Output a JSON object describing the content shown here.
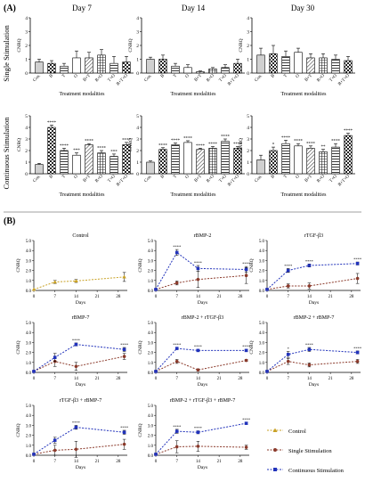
{
  "panel_a_label": "(A)",
  "panel_b_label": "(B)",
  "column_headers": [
    "Day 7",
    "Day 14",
    "Day 30"
  ],
  "row_labels": [
    "Single Stimulation",
    "Continuous Stimulation"
  ],
  "legend": [
    {
      "label": "Control",
      "color": "#c9a227"
    },
    {
      "label": "Single Stimulation",
      "color": "#8b3a2b"
    },
    {
      "label": "Continuous Stimulation",
      "color": "#2233bb"
    }
  ],
  "chart_data": [
    {
      "type": "bar",
      "panel": "A",
      "row": "Single Stimulation",
      "title": "Day 7",
      "categories": [
        "Con.",
        "B",
        "T",
        "O",
        "B+T",
        "B+O",
        "T+O",
        "B+T+O"
      ],
      "values": [
        0.8,
        0.7,
        0.5,
        1.1,
        1.1,
        1.3,
        0.7,
        0.8
      ],
      "errors": [
        0.2,
        0.2,
        0.2,
        0.5,
        0.4,
        0.4,
        0.5,
        0.4
      ],
      "stars": [
        "",
        "",
        "",
        "",
        "",
        "",
        "",
        ""
      ],
      "xlabel": "Treatment modalities",
      "ylabel": "CNRQ",
      "yticks": [
        0,
        1,
        2,
        3,
        4
      ],
      "ylim": [
        0,
        4
      ]
    },
    {
      "type": "bar",
      "panel": "A",
      "row": "Single Stimulation",
      "title": "Day 14",
      "categories": [
        "Con.",
        "B",
        "T",
        "O",
        "B+T",
        "B+O",
        "T+O",
        "B+T+O"
      ],
      "values": [
        1.0,
        1.0,
        0.5,
        0.4,
        0.1,
        0.3,
        0.4,
        0.7
      ],
      "errors": [
        0.15,
        0.3,
        0.2,
        0.2,
        0.05,
        0.1,
        0.2,
        0.3
      ],
      "stars": [
        "",
        "",
        "",
        "",
        "",
        "",
        "",
        ""
      ],
      "xlabel": "Treatment modalities",
      "ylabel": "CNRQ",
      "yticks": [
        0,
        1,
        2,
        3,
        4
      ],
      "ylim": [
        0,
        4
      ]
    },
    {
      "type": "bar",
      "panel": "A",
      "row": "Single Stimulation",
      "title": "Day 30",
      "categories": [
        "Con.",
        "B",
        "T",
        "O",
        "B+T",
        "B+O",
        "T+O",
        "B+T+O"
      ],
      "values": [
        1.3,
        1.4,
        1.2,
        1.5,
        1.1,
        1.1,
        1.0,
        0.9
      ],
      "errors": [
        0.5,
        0.6,
        0.4,
        0.3,
        0.3,
        0.3,
        0.3,
        0.3
      ],
      "stars": [
        "",
        "",
        "",
        "",
        "",
        "",
        "",
        ""
      ],
      "xlabel": "Treatment modalities",
      "ylabel": "CNRQ",
      "yticks": [
        0,
        1,
        2,
        3,
        4
      ],
      "ylim": [
        0,
        4
      ]
    },
    {
      "type": "bar",
      "panel": "A",
      "row": "Continuous Stimulation",
      "title": "Day 7",
      "categories": [
        "Con.",
        "B",
        "T",
        "O",
        "B+T",
        "B+O",
        "T+O",
        "B+T+O"
      ],
      "values": [
        0.8,
        4.0,
        2.0,
        1.6,
        2.5,
        1.8,
        1.5,
        2.5
      ],
      "errors": [
        0.1,
        0.2,
        0.2,
        0.2,
        0.1,
        0.2,
        0.2,
        0.2
      ],
      "stars": [
        "",
        "****",
        "****",
        "***",
        "****",
        "****",
        "***",
        "****"
      ],
      "xlabel": "Treatment modalities",
      "ylabel": "CNRQ",
      "yticks": [
        0,
        1,
        2,
        3,
        4,
        5
      ],
      "ylim": [
        0,
        5
      ]
    },
    {
      "type": "bar",
      "panel": "A",
      "row": "Continuous Stimulation",
      "title": "Day 14",
      "categories": [
        "Con.",
        "B",
        "T",
        "O",
        "B+T",
        "B+O",
        "T+O",
        "B+T+O"
      ],
      "values": [
        1.0,
        2.1,
        2.5,
        2.7,
        2.1,
        2.2,
        2.8,
        2.2
      ],
      "errors": [
        0.1,
        0.15,
        0.15,
        0.15,
        0.1,
        0.15,
        0.2,
        0.15
      ],
      "stars": [
        "",
        "****",
        "****",
        "****",
        "****",
        "****",
        "****",
        "****"
      ],
      "xlabel": "Treatment modalities",
      "ylabel": "CNRQ",
      "yticks": [
        0,
        1,
        2,
        3,
        4,
        5
      ],
      "ylim": [
        0,
        5
      ]
    },
    {
      "type": "bar",
      "panel": "A",
      "row": "Continuous Stimulation",
      "title": "Day 30",
      "categories": [
        "Con.",
        "B",
        "T",
        "O",
        "B+T",
        "B+O",
        "T+O",
        "B+T+O"
      ],
      "values": [
        1.2,
        2.0,
        2.6,
        2.4,
        2.2,
        1.9,
        2.3,
        3.3
      ],
      "errors": [
        0.4,
        0.3,
        0.3,
        0.2,
        0.2,
        0.2,
        0.3,
        0.2
      ],
      "stars": [
        "",
        "*",
        "****",
        "****",
        "****",
        "**",
        "****",
        "****"
      ],
      "xlabel": "Treatment modalities",
      "ylabel": "CNRQ",
      "yticks": [
        0,
        1,
        2,
        3,
        4,
        5
      ],
      "ylim": [
        0,
        5
      ]
    },
    {
      "type": "line",
      "panel": "B",
      "title": "Control",
      "x": [
        0,
        7,
        14,
        30
      ],
      "xticks": [
        0,
        7,
        14,
        21,
        28
      ],
      "xlabel": "Days",
      "ylabel": "CNRQ",
      "yticks": [
        0.0,
        1.0,
        2.0,
        3.0,
        4.0,
        5.0
      ],
      "ylim": [
        0,
        5
      ],
      "series": [
        {
          "name": "Control",
          "values": [
            0.1,
            0.85,
            0.95,
            1.35
          ],
          "errors": [
            0,
            0.15,
            0.15,
            0.45
          ],
          "stars": [
            "",
            "",
            "",
            ""
          ]
        }
      ]
    },
    {
      "type": "line",
      "panel": "B",
      "title": "rBMP-2",
      "x": [
        0,
        7,
        14,
        30
      ],
      "xticks": [
        0,
        7,
        14,
        21,
        28
      ],
      "xlabel": "Days",
      "ylabel": "CNRQ",
      "yticks": [
        0.0,
        1.0,
        2.0,
        3.0,
        4.0,
        5.0
      ],
      "ylim": [
        0,
        5
      ],
      "series": [
        {
          "name": "Single Stimulation",
          "values": [
            0.1,
            0.75,
            1.1,
            1.5
          ],
          "errors": [
            0,
            0.2,
            0.8,
            0.8
          ],
          "stars": [
            "",
            "",
            "",
            ""
          ]
        },
        {
          "name": "Continuous Stimulation",
          "values": [
            0.1,
            3.8,
            2.2,
            2.1
          ],
          "errors": [
            0,
            0.3,
            0.3,
            0.3
          ],
          "stars": [
            "",
            "****",
            "****",
            "****"
          ]
        }
      ]
    },
    {
      "type": "line",
      "panel": "B",
      "title": "rTGF-β3",
      "x": [
        0,
        7,
        14,
        30
      ],
      "xticks": [
        0,
        7,
        14,
        21,
        28
      ],
      "xlabel": "Days",
      "ylabel": "CNRQ",
      "yticks": [
        0.0,
        1.0,
        2.0,
        3.0,
        4.0,
        5.0
      ],
      "ylim": [
        0,
        5
      ],
      "series": [
        {
          "name": "Single Stimulation",
          "values": [
            0.1,
            0.45,
            0.45,
            1.2
          ],
          "errors": [
            0,
            0.2,
            0.3,
            0.5
          ],
          "stars": [
            "",
            "",
            "",
            ""
          ]
        },
        {
          "name": "Continuous Stimulation",
          "values": [
            0.1,
            2.0,
            2.5,
            2.7
          ],
          "errors": [
            0,
            0.2,
            0.15,
            0.15
          ],
          "stars": [
            "",
            "****",
            "****",
            "****"
          ]
        }
      ]
    },
    {
      "type": "line",
      "panel": "B",
      "title": "rBMP-7",
      "x": [
        0,
        7,
        14,
        30
      ],
      "xticks": [
        0,
        7,
        14,
        21,
        28
      ],
      "xlabel": "Days",
      "ylabel": "CNRQ",
      "yticks": [
        0.0,
        1.0,
        2.0,
        3.0,
        4.0,
        5.0
      ],
      "ylim": [
        0,
        5
      ],
      "series": [
        {
          "name": "Single Stimulation",
          "values": [
            0.1,
            1.1,
            0.6,
            1.6
          ],
          "errors": [
            0,
            0.5,
            0.4,
            0.3
          ],
          "stars": [
            "",
            "",
            "",
            ""
          ]
        },
        {
          "name": "Continuous Stimulation",
          "values": [
            0.1,
            1.5,
            2.8,
            2.3
          ],
          "errors": [
            0,
            0.4,
            0.15,
            0.2
          ],
          "stars": [
            "",
            "",
            "****",
            "****"
          ]
        }
      ]
    },
    {
      "type": "line",
      "panel": "B",
      "title": "rBMP-2 + rTGF-β3",
      "x": [
        0,
        7,
        14,
        30
      ],
      "xticks": [
        0,
        7,
        14,
        21,
        28
      ],
      "xlabel": "Days",
      "ylabel": "CNRQ",
      "yticks": [
        0.0,
        1.0,
        2.0,
        3.0,
        4.0,
        5.0
      ],
      "ylim": [
        0,
        5
      ],
      "series": [
        {
          "name": "Single Stimulation",
          "values": [
            0.1,
            1.1,
            0.25,
            1.2
          ],
          "errors": [
            0,
            0.2,
            0.1,
            0.1
          ],
          "stars": [
            "",
            "",
            "",
            ""
          ]
        },
        {
          "name": "Continuous Stimulation",
          "values": [
            0.1,
            2.4,
            2.2,
            2.2
          ],
          "errors": [
            0,
            0.1,
            0.1,
            0.1
          ],
          "stars": [
            "",
            "****",
            "****",
            "****"
          ]
        }
      ]
    },
    {
      "type": "line",
      "panel": "B",
      "title": "rBMP-2 + rBMP-7",
      "x": [
        0,
        7,
        14,
        30
      ],
      "xticks": [
        0,
        7,
        14,
        21,
        28
      ],
      "xlabel": "Days",
      "ylabel": "CNRQ",
      "yticks": [
        0.0,
        1.0,
        2.0,
        3.0,
        4.0,
        5.0
      ],
      "ylim": [
        0,
        5
      ],
      "series": [
        {
          "name": "Single Stimulation",
          "values": [
            0.1,
            1.1,
            0.75,
            1.1
          ],
          "errors": [
            0,
            0.3,
            0.2,
            0.2
          ],
          "stars": [
            "",
            "",
            "",
            ""
          ]
        },
        {
          "name": "Continuous Stimulation",
          "values": [
            0.1,
            1.8,
            2.3,
            2.0
          ],
          "errors": [
            0,
            0.3,
            0.2,
            0.15
          ],
          "stars": [
            "",
            "*",
            "****",
            "****"
          ]
        }
      ]
    },
    {
      "type": "line",
      "panel": "B",
      "title": "rTGF-β3 + rBMP-7",
      "x": [
        0,
        7,
        14,
        30
      ],
      "xticks": [
        0,
        7,
        14,
        21,
        28
      ],
      "xlabel": "Days",
      "ylabel": "CNRQ",
      "yticks": [
        0.0,
        1.0,
        2.0,
        3.0,
        4.0,
        5.0
      ],
      "ylim": [
        0,
        5
      ],
      "series": [
        {
          "name": "Single Stimulation",
          "values": [
            0.1,
            0.5,
            0.6,
            1.1
          ],
          "errors": [
            0,
            0.5,
            0.8,
            0.5
          ],
          "stars": [
            "",
            "",
            "",
            ""
          ]
        },
        {
          "name": "Continuous Stimulation",
          "values": [
            0.1,
            1.5,
            2.8,
            2.3
          ],
          "errors": [
            0,
            0.3,
            0.2,
            0.2
          ],
          "stars": [
            "",
            "",
            "****",
            "****"
          ]
        }
      ]
    },
    {
      "type": "line",
      "panel": "B",
      "title": "rBMP-2 + rTGF-β3 + rBMP-7",
      "x": [
        0,
        7,
        14,
        30
      ],
      "xticks": [
        0,
        7,
        14,
        21,
        28
      ],
      "xlabel": "Days",
      "ylabel": "CNRQ",
      "yticks": [
        0.0,
        1.0,
        2.0,
        3.0,
        4.0,
        5.0
      ],
      "ylim": [
        0,
        5
      ],
      "series": [
        {
          "name": "Single Stimulation",
          "values": [
            0.1,
            0.85,
            0.9,
            0.8
          ],
          "errors": [
            0,
            0.6,
            0.5,
            0.2
          ],
          "stars": [
            "",
            "",
            "",
            ""
          ]
        },
        {
          "name": "Continuous Stimulation",
          "values": [
            0.1,
            2.4,
            2.3,
            3.2
          ],
          "errors": [
            0,
            0.2,
            0.15,
            0.1
          ],
          "stars": [
            "",
            "****",
            "****",
            "****"
          ]
        }
      ]
    }
  ]
}
